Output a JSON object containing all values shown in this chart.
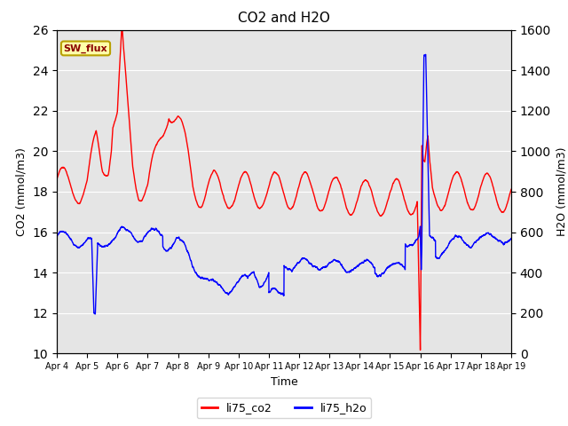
{
  "title": "CO2 and H2O",
  "xlabel": "Time",
  "ylabel_left": "CO2 (mmol/m3)",
  "ylabel_right": "H2O (mmol/m3)",
  "co2_color": "red",
  "h2o_color": "blue",
  "ylim_left": [
    10,
    26
  ],
  "ylim_right": [
    0,
    1600
  ],
  "yticks_left": [
    10,
    12,
    14,
    16,
    18,
    20,
    22,
    24,
    26
  ],
  "yticks_right": [
    0,
    200,
    400,
    600,
    800,
    1000,
    1200,
    1400,
    1600
  ],
  "x_tick_labels": [
    "Apr 4",
    "Apr 5",
    "Apr 6",
    "Apr 7",
    "Apr 8",
    "Apr 9",
    "Apr 10",
    "Apr 11",
    "Apr 12",
    "Apr 13",
    "Apr 14",
    "Apr 15",
    "Apr 16",
    "Apr 17",
    "Apr 18",
    "Apr 19"
  ],
  "background_color": "#e5e5e5",
  "annotation_text": "SW_flux",
  "annotation_color": "darkred",
  "annotation_bg": "#ffffaa",
  "linewidth": 1.0,
  "grid_color": "white"
}
